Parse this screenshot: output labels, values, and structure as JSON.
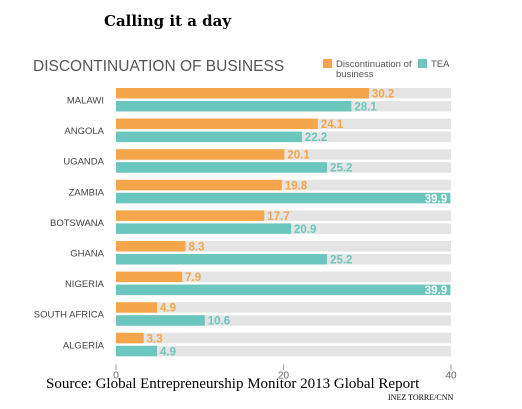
{
  "page": {
    "title": "Calling it a day",
    "source": "Source: Global Entrepreneurship Monitor 2013 Global Report",
    "credit": "INEZ TORRE/CNN"
  },
  "colors": {
    "discontinuation": "#f5a54a",
    "tea": "#6bc6bd",
    "track": "#e4e4e4",
    "heading": "#555555",
    "category": "#444444"
  },
  "chart_data": {
    "type": "bar",
    "orientation": "horizontal",
    "title": "DISCONTINUATION OF BUSINESS",
    "categories": [
      "MALAWI",
      "ANGOLA",
      "UGANDA",
      "ZAMBIA",
      "BOTSWANA",
      "GHANA",
      "NIGERIA",
      "SOUTH AFRICA",
      "ALGERIA"
    ],
    "series": [
      {
        "name": "Discontinuation of business",
        "values": [
          30.2,
          24.1,
          20.1,
          19.8,
          17.7,
          8.3,
          7.9,
          4.9,
          3.3
        ]
      },
      {
        "name": "TEA",
        "values": [
          28.1,
          22.2,
          25.2,
          39.9,
          20.9,
          25.2,
          39.9,
          10.6,
          4.9
        ]
      }
    ],
    "value_labels": [
      [
        "30.2",
        "24.1",
        "20.1",
        "19.8",
        "17.7",
        "8.3",
        "7.9",
        "4.9",
        "3.3"
      ],
      [
        "28.1",
        "22.2",
        "25.2",
        "39.9",
        "20.9",
        "25.2",
        "39.9",
        "10.6",
        "4.9"
      ]
    ],
    "xlim": [
      0,
      40
    ],
    "xticks": [
      "0",
      "20",
      "40"
    ],
    "legend_position": "top-right",
    "grid": false
  }
}
